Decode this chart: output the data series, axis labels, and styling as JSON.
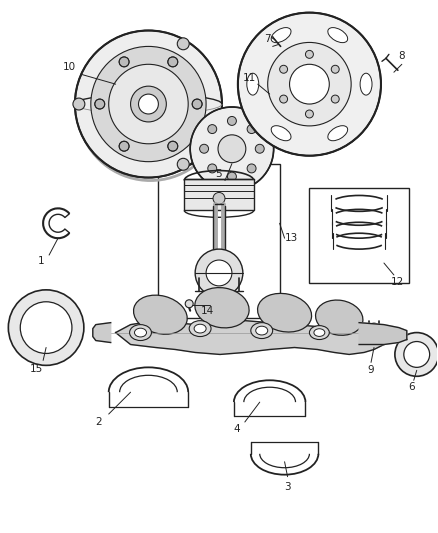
{
  "background_color": "#ffffff",
  "fig_width": 4.38,
  "fig_height": 5.33,
  "dpi": 100,
  "line_color": "#222222",
  "label_color": "#222222",
  "label_fontsize": 7.5
}
